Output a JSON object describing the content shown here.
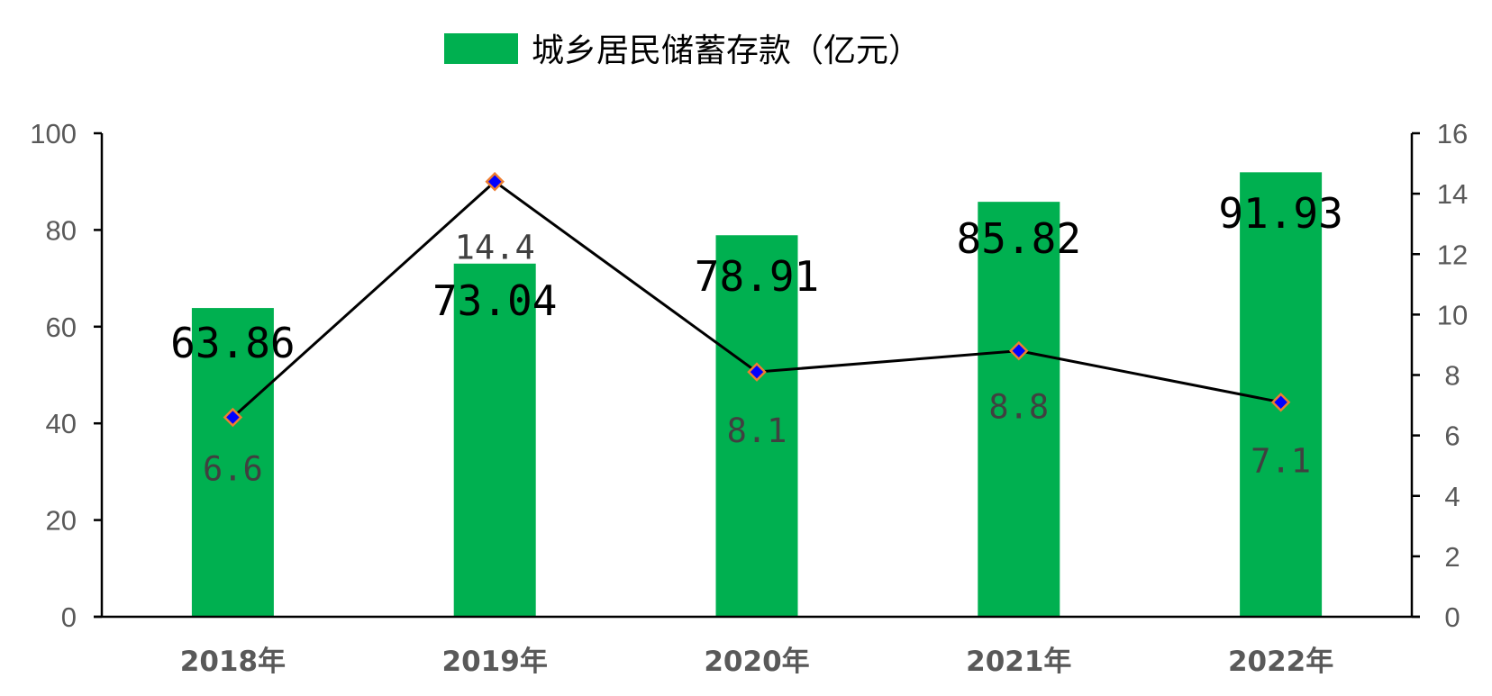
{
  "chart_data": {
    "type": "bar",
    "categories": [
      "2018年",
      "2019年",
      "2020年",
      "2021年",
      "2022年"
    ],
    "series": [
      {
        "name": "城乡居民储蓄存款（亿元）",
        "axis": "left",
        "type": "bar",
        "color": "#00B050",
        "values": [
          63.86,
          73.04,
          78.91,
          85.82,
          91.93
        ],
        "labels": [
          "63.86",
          "73.04",
          "78.91",
          "85.82",
          "91.93"
        ]
      },
      {
        "axis": "right",
        "type": "line",
        "color": "#000000",
        "marker_fill": "#0000FF",
        "marker_edge": "#ED7D31",
        "values": [
          6.6,
          14.4,
          8.1,
          8.8,
          7.1
        ],
        "labels": [
          "6.6",
          "14.4",
          "8.1",
          "8.8",
          "7.1"
        ]
      }
    ],
    "ylim": [
      0,
      100
    ],
    "y_ticks": [
      "0",
      "20",
      "40",
      "60",
      "80",
      "100"
    ],
    "y2lim": [
      0,
      16
    ],
    "y2_ticks": [
      "0",
      "2",
      "4",
      "6",
      "8",
      "10",
      "12",
      "14",
      "16"
    ],
    "grid": false,
    "legend": "top-center"
  }
}
